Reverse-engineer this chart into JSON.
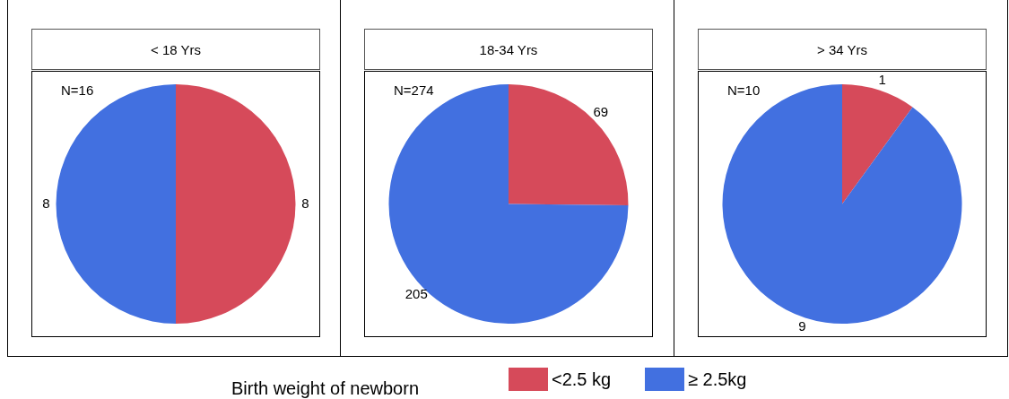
{
  "chart_data": [
    {
      "type": "pie",
      "title": "< 18 Yrs",
      "categories": [
        "<2.5 kg",
        "≥ 2.5kg"
      ],
      "values": [
        8,
        8
      ],
      "colors": [
        "#d64a5a",
        "#4270e0"
      ],
      "data_labels": true,
      "annotations": [
        "N=16"
      ],
      "legend": "bottom",
      "legend_title": "Birth weight of newborn"
    },
    {
      "type": "pie",
      "title": "18-34 Yrs",
      "categories": [
        null,
        null
      ],
      "values": [
        69,
        205
      ],
      "colors": [
        "#d64a5a",
        "#4270e0"
      ],
      "data_labels": true,
      "annotations": [
        "N=274"
      ]
    },
    {
      "type": "pie",
      "title": "> 34 Yrs",
      "categories": [
        null,
        null
      ],
      "values": [
        1,
        9
      ],
      "colors": [
        "#d64a5a",
        "#4270e0"
      ],
      "data_labels": true,
      "annotations": [
        "N=10"
      ]
    }
  ]
}
